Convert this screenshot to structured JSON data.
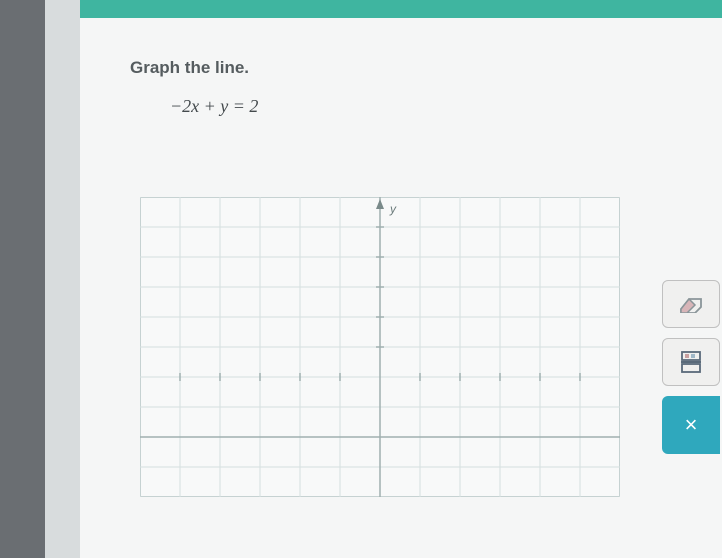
{
  "header": {
    "bar_color": "#3fb5a0"
  },
  "problem": {
    "instruction": "Graph the line.",
    "equation": "−2x + y = 2"
  },
  "graph": {
    "type": "coordinate-grid",
    "xlim": [
      -6,
      6
    ],
    "ylim": [
      -4,
      6
    ],
    "xtick_step": 1,
    "ytick_step": 1,
    "background_color": "#f8f9f9",
    "grid_color": "#d5e0e0",
    "axis_color": "#9fb0b0",
    "border_color": "#b8c5c5",
    "y_axis_label": "y"
  },
  "toolbar": {
    "eraser": {
      "name": "eraser",
      "colors": {
        "body": "#a8b5b8",
        "tip": "#e8a0a0"
      }
    },
    "fraction": {
      "name": "fraction",
      "color": "#5a6a7a"
    },
    "clear": {
      "label": "×",
      "bg_color": "#2fa8bd"
    }
  }
}
